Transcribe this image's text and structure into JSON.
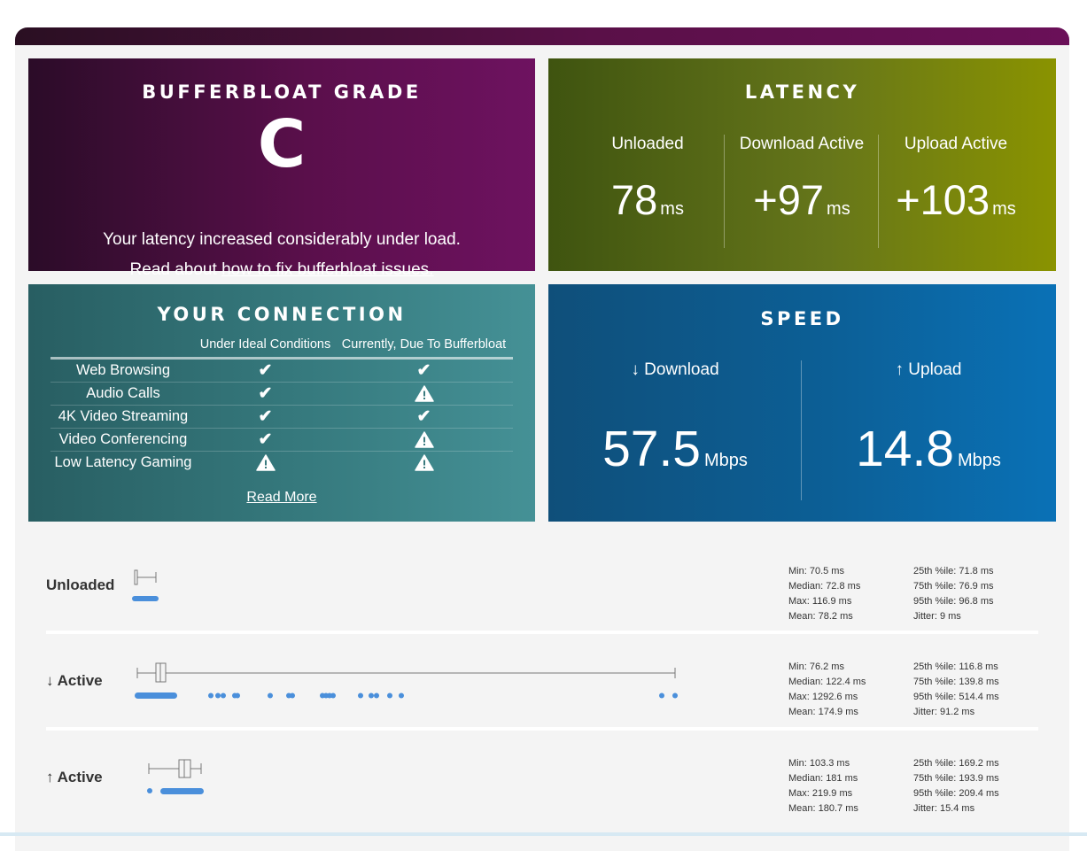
{
  "grade": {
    "title": "BUFFERBLOAT GRADE",
    "letter": "C",
    "message": "Your latency increased considerably under load.",
    "read_prefix": "Read about ",
    "link_text": "how to fix bufferbloat issues."
  },
  "latency": {
    "title": "LATENCY",
    "columns": [
      {
        "label": "Unloaded",
        "value": "78",
        "unit": "ms"
      },
      {
        "label": "Download Active",
        "value": "+97",
        "unit": "ms"
      },
      {
        "label": "Upload Active",
        "value": "+103",
        "unit": "ms"
      }
    ]
  },
  "connection": {
    "title": "YOUR CONNECTION",
    "headers": [
      "Under Ideal Conditions",
      "Currently, Due To Bufferbloat"
    ],
    "rows": [
      {
        "name": "Web Browsing",
        "ideal": "check",
        "current": "check"
      },
      {
        "name": "Audio Calls",
        "ideal": "check",
        "current": "warning"
      },
      {
        "name": "4K Video Streaming",
        "ideal": "check",
        "current": "check"
      },
      {
        "name": "Video Conferencing",
        "ideal": "check",
        "current": "warning"
      },
      {
        "name": "Low Latency Gaming",
        "ideal": "warning",
        "current": "warning"
      }
    ],
    "read_more": "Read More"
  },
  "speed": {
    "title": "SPEED",
    "download": {
      "label": "↓ Download",
      "value": "57.5",
      "unit": "Mbps"
    },
    "upload": {
      "label": "↑ Upload",
      "value": "14.8",
      "unit": "Mbps"
    }
  },
  "latency_rows": [
    {
      "label": "Unloaded",
      "stats_left": [
        "Min: 70.5 ms",
        "Median: 72.8 ms",
        "Max: 116.9 ms",
        "Mean: 78.2 ms"
      ],
      "stats_right": [
        "25th %ile: 71.8 ms",
        "75th %ile: 76.9 ms",
        "95th %ile: 96.8 ms",
        "Jitter: 9 ms"
      ]
    },
    {
      "label": "↓ Active",
      "stats_left": [
        "Min: 76.2 ms",
        "Median: 122.4 ms",
        "Max: 1292.6 ms",
        "Mean: 174.9 ms"
      ],
      "stats_right": [
        "25th %ile: 116.8 ms",
        "75th %ile: 139.8 ms",
        "95th %ile: 514.4 ms",
        "Jitter: 91.2 ms"
      ]
    },
    {
      "label": "↑ Active",
      "stats_left": [
        "Min: 103.3 ms",
        "Median: 181 ms",
        "Max: 219.9 ms",
        "Mean: 180.7 ms"
      ],
      "stats_right": [
        "25th %ile: 169.2 ms",
        "75th %ile: 193.9 ms",
        "95th %ile: 209.4 ms",
        "Jitter: 15.4 ms"
      ]
    }
  ],
  "colors": {
    "dot": "#4a8fdb",
    "whisker": "#777777"
  }
}
